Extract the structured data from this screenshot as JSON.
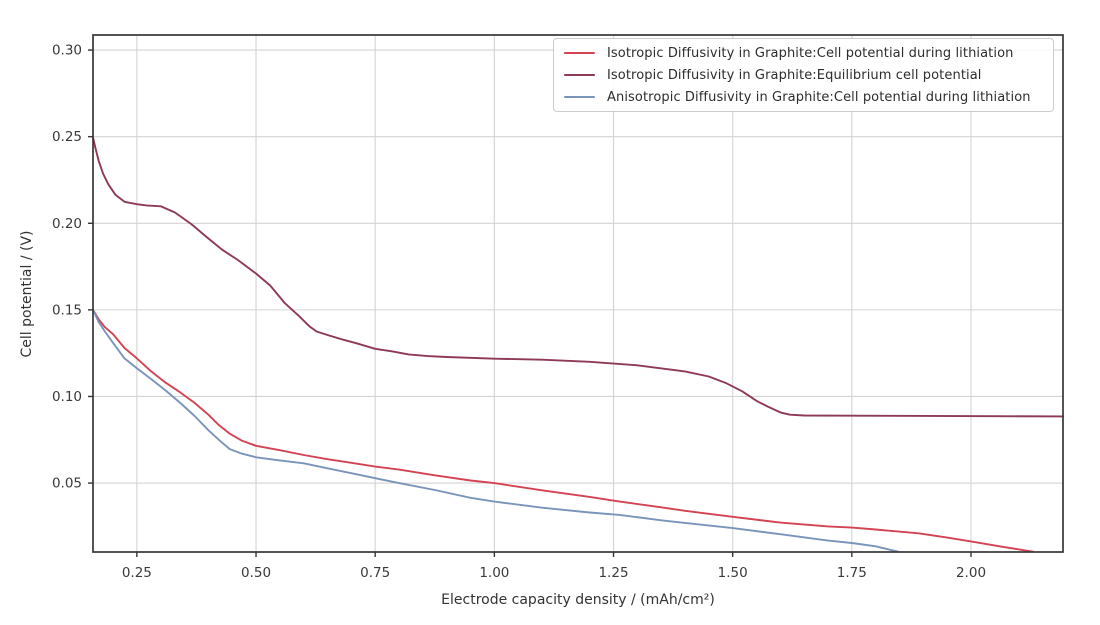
{
  "chart_data": {
    "type": "line",
    "title": "",
    "xlabel": "Electrode capacity density / (mAh/cm²)",
    "ylabel": "Cell potential / (V)",
    "xlim": [
      0.158,
      2.193
    ],
    "ylim": [
      0.0102,
      0.3087
    ],
    "xticks": [
      0.25,
      0.5,
      0.75,
      1.0,
      1.25,
      1.5,
      1.75,
      2.0
    ],
    "xtick_labels": [
      "0.25",
      "0.50",
      "0.75",
      "1.00",
      "1.25",
      "1.50",
      "1.75",
      "2.00"
    ],
    "yticks": [
      0.05,
      0.1,
      0.15,
      0.2,
      0.25,
      0.3
    ],
    "ytick_labels": [
      "0.05",
      "0.10",
      "0.15",
      "0.20",
      "0.25",
      "0.30"
    ],
    "grid": true,
    "grid_color": "#d4d4d4",
    "spine_color": "#363636",
    "tick_label_color": "#3a3a3a",
    "axis_label_color": "#333333",
    "legend_position": "upper right",
    "series": [
      {
        "name": "Isotropic Diffusivity in Graphite:Cell potential during lithiation",
        "color": "#d34353",
        "x": [
          0.158,
          0.17,
          0.183,
          0.2,
          0.224,
          0.25,
          0.28,
          0.31,
          0.34,
          0.37,
          0.4,
          0.42,
          0.445,
          0.47,
          0.5,
          0.55,
          0.6,
          0.65,
          0.7,
          0.75,
          0.8,
          0.875,
          0.95,
          1.0,
          1.1,
          1.2,
          1.263,
          1.35,
          1.4,
          1.5,
          1.6,
          1.7,
          1.75,
          1.8,
          1.89,
          1.95,
          2.0,
          2.06,
          2.13
        ],
        "y": [
          0.15,
          0.1445,
          0.14,
          0.136,
          0.128,
          0.122,
          0.1145,
          0.108,
          0.1025,
          0.0965,
          0.0895,
          0.084,
          0.0785,
          0.0745,
          0.0715,
          0.069,
          0.0662,
          0.0638,
          0.0617,
          0.0595,
          0.0578,
          0.0545,
          0.0515,
          0.05,
          0.0458,
          0.042,
          0.0393,
          0.036,
          0.034,
          0.0305,
          0.0272,
          0.025,
          0.0243,
          0.0232,
          0.021,
          0.0185,
          0.0163,
          0.0135,
          0.0104
        ]
      },
      {
        "name": "Isotropic Diffusivity in Graphite:Equilibrium cell potential",
        "color": "#8f3a55",
        "x": [
          0.158,
          0.163,
          0.17,
          0.179,
          0.19,
          0.205,
          0.224,
          0.25,
          0.27,
          0.3,
          0.33,
          0.364,
          0.4,
          0.43,
          0.462,
          0.5,
          0.53,
          0.56,
          0.59,
          0.612,
          0.627,
          0.65,
          0.68,
          0.711,
          0.75,
          0.788,
          0.82,
          0.86,
          0.9,
          1.0,
          1.1,
          1.2,
          1.3,
          1.4,
          1.45,
          1.487,
          1.52,
          1.55,
          1.575,
          1.6,
          1.62,
          1.65,
          1.75,
          1.9,
          2.05,
          2.193
        ],
        "y": [
          0.2495,
          0.2435,
          0.236,
          0.2288,
          0.2225,
          0.2165,
          0.2124,
          0.211,
          0.2103,
          0.2098,
          0.2062,
          0.1996,
          0.1912,
          0.1845,
          0.1788,
          0.171,
          0.164,
          0.154,
          0.1465,
          0.1405,
          0.1375,
          0.1355,
          0.133,
          0.1307,
          0.1275,
          0.1259,
          0.1243,
          0.1233,
          0.1228,
          0.1218,
          0.1212,
          0.12,
          0.118,
          0.1145,
          0.1115,
          0.1076,
          0.103,
          0.0975,
          0.094,
          0.0908,
          0.0895,
          0.089,
          0.0889,
          0.0888,
          0.0886,
          0.0885
        ]
      },
      {
        "name": "Anisotropic Diffusivity in Graphite:Cell potential during lithiation",
        "color": "#7b94ba",
        "x": [
          0.158,
          0.17,
          0.183,
          0.2,
          0.224,
          0.25,
          0.28,
          0.31,
          0.34,
          0.37,
          0.4,
          0.42,
          0.43,
          0.445,
          0.47,
          0.5,
          0.55,
          0.6,
          0.65,
          0.7,
          0.75,
          0.8,
          0.875,
          0.95,
          1.0,
          1.1,
          1.2,
          1.263,
          1.35,
          1.4,
          1.5,
          1.6,
          1.7,
          1.75,
          1.8,
          1.847
        ],
        "y": [
          0.15,
          0.143,
          0.1375,
          0.131,
          0.122,
          0.1163,
          0.11,
          0.1035,
          0.0965,
          0.089,
          0.0805,
          0.0755,
          0.073,
          0.0696,
          0.067,
          0.0649,
          0.0631,
          0.0614,
          0.0585,
          0.0557,
          0.0528,
          0.05,
          0.046,
          0.0415,
          0.0393,
          0.0358,
          0.033,
          0.0316,
          0.0285,
          0.027,
          0.024,
          0.0205,
          0.0168,
          0.0154,
          0.0135,
          0.0104
        ]
      }
    ]
  }
}
